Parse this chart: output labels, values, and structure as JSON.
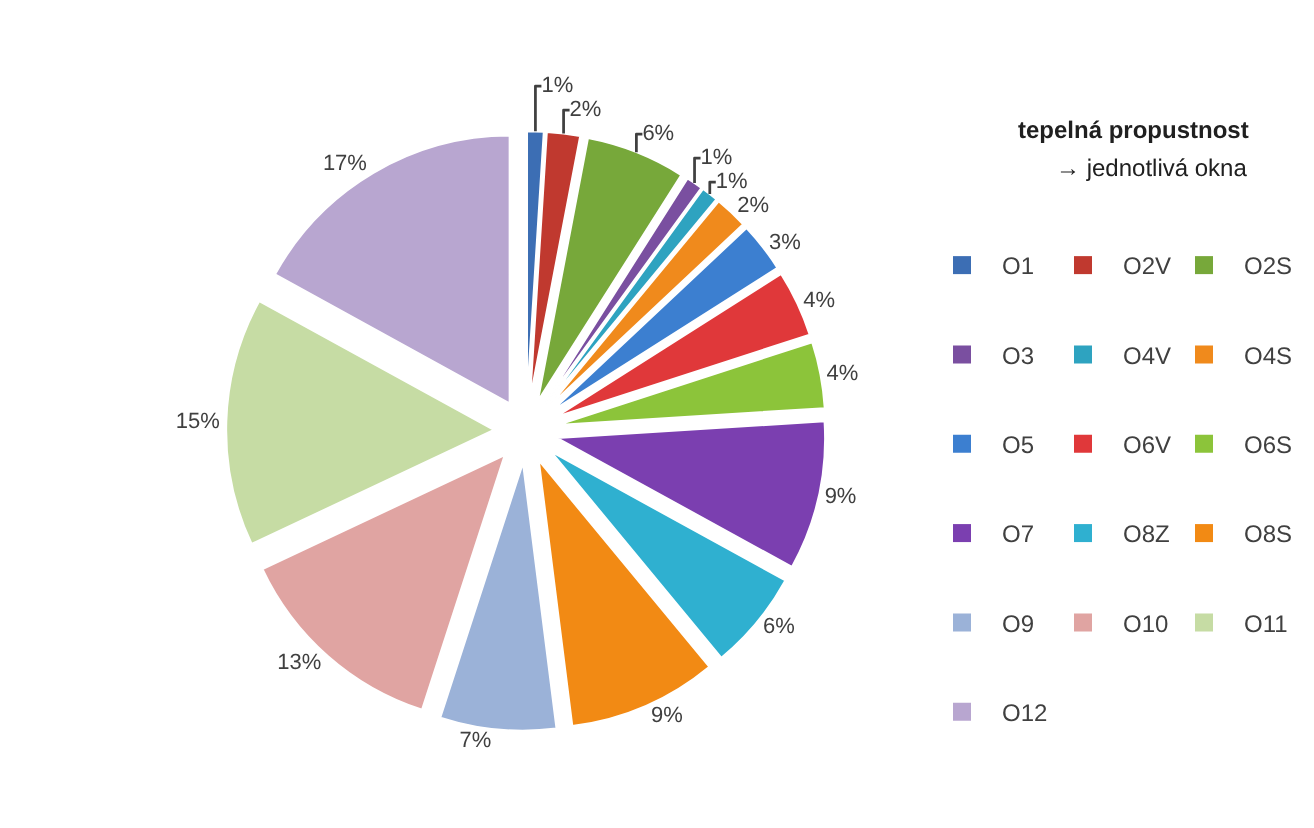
{
  "chart_data": {
    "type": "pie",
    "title": "tepelná propustnost",
    "subtitle": "→ jednotlivá okna",
    "categories": [
      "O1",
      "O2V",
      "O2S",
      "O3",
      "O4V",
      "O4S",
      "O5",
      "O6V",
      "O6S",
      "O7",
      "O8Z",
      "O8S",
      "O9",
      "O10",
      "O11",
      "O12"
    ],
    "values": [
      1,
      2,
      6,
      1,
      1,
      2,
      3,
      4,
      4,
      9,
      6,
      9,
      7,
      13,
      15,
      17
    ],
    "value_labels": [
      "1%",
      "2%",
      "6%",
      "1%",
      "1%",
      "2%",
      "3%",
      "4%",
      "4%",
      "9%",
      "6%",
      "9%",
      "7%",
      "13%",
      "15%",
      "17%"
    ],
    "colors": [
      "#3c6eb4",
      "#c0392f",
      "#77a83a",
      "#7a4fa0",
      "#2ea3c0",
      "#f08a1c",
      "#3c7fd0",
      "#e0383a",
      "#8cc43a",
      "#7b3fb0",
      "#2fb0d0",
      "#f28a14",
      "#9bb2d8",
      "#e0a4a2",
      "#c6dca4",
      "#b8a6d0"
    ],
    "legend": "right"
  }
}
